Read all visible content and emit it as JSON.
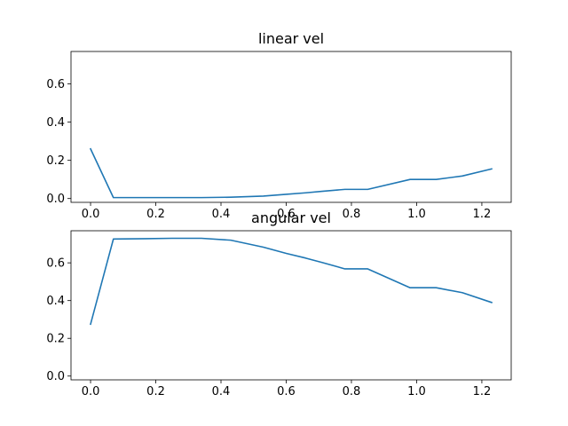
{
  "colors": {
    "series": "#1f77b4",
    "axes": "#000000",
    "background": "#ffffff"
  },
  "chart_data": [
    {
      "type": "line",
      "title": "linear vel",
      "xlabel": "",
      "ylabel": "",
      "xlim": [
        -0.06,
        1.29
      ],
      "ylim": [
        -0.02,
        0.77
      ],
      "xticks": [
        0.0,
        0.2,
        0.4,
        0.6,
        0.8,
        1.0,
        1.2
      ],
      "xtick_labels": [
        "0.0",
        "0.2",
        "0.4",
        "0.6",
        "0.8",
        "1.0",
        "1.2"
      ],
      "yticks": [
        0.0,
        0.2,
        0.4,
        0.6
      ],
      "ytick_labels": [
        "0.0",
        "0.2",
        "0.4",
        "0.6"
      ],
      "grid": false,
      "series": [
        {
          "x": [
            0.0,
            0.07,
            0.17,
            0.25,
            0.34,
            0.43,
            0.53,
            0.6,
            0.66,
            0.71,
            0.78,
            0.85,
            0.98,
            1.06,
            1.14,
            1.23
          ],
          "y": [
            0.26,
            0.005,
            0.005,
            0.005,
            0.005,
            0.007,
            0.013,
            0.022,
            0.03,
            0.038,
            0.048,
            0.048,
            0.1,
            0.1,
            0.118,
            0.155
          ]
        }
      ]
    },
    {
      "type": "line",
      "title": "angular vel",
      "xlabel": "",
      "ylabel": "",
      "xlim": [
        -0.06,
        1.29
      ],
      "ylim": [
        -0.02,
        0.77
      ],
      "xticks": [
        0.0,
        0.2,
        0.4,
        0.6,
        0.8,
        1.0,
        1.2
      ],
      "xtick_labels": [
        "0.0",
        "0.2",
        "0.4",
        "0.6",
        "0.8",
        "1.0",
        "1.2"
      ],
      "yticks": [
        0.0,
        0.2,
        0.4,
        0.6
      ],
      "ytick_labels": [
        "0.0",
        "0.2",
        "0.4",
        "0.6"
      ],
      "grid": false,
      "series": [
        {
          "x": [
            0.0,
            0.07,
            0.17,
            0.25,
            0.34,
            0.43,
            0.53,
            0.6,
            0.66,
            0.71,
            0.78,
            0.85,
            0.98,
            1.06,
            1.14,
            1.23
          ],
          "y": [
            0.275,
            0.726,
            0.728,
            0.73,
            0.73,
            0.72,
            0.683,
            0.65,
            0.625,
            0.602,
            0.568,
            0.568,
            0.468,
            0.468,
            0.442,
            0.39
          ]
        }
      ]
    }
  ]
}
